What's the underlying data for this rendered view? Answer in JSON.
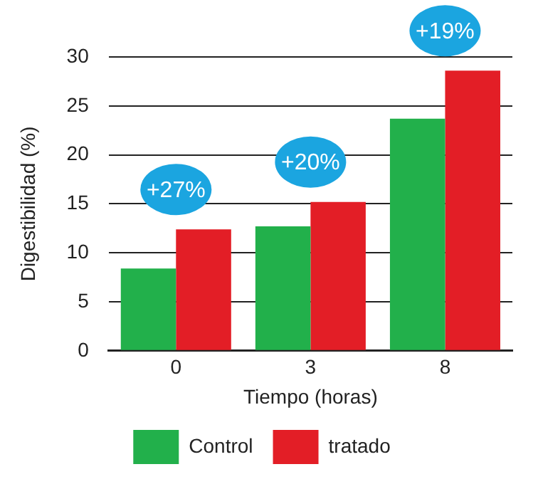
{
  "chart_data": {
    "type": "bar",
    "categories": [
      "0",
      "3",
      "8"
    ],
    "series": [
      {
        "name": "Control",
        "color": "#22b04b",
        "values": [
          8.4,
          12.7,
          23.7
        ]
      },
      {
        "name": "tratado",
        "color": "#e31e26",
        "values": [
          12.4,
          15.2,
          28.6
        ]
      }
    ],
    "xlabel": "Tiempo (horas)",
    "ylabel": "Digestibilidad (%)",
    "ylim": [
      0,
      30
    ],
    "yticks": [
      0,
      5,
      10,
      15,
      20,
      25,
      30
    ],
    "grid": "y",
    "legend": "bottom",
    "annotations": [
      "+27%",
      "+20%",
      "+19%"
    ]
  }
}
